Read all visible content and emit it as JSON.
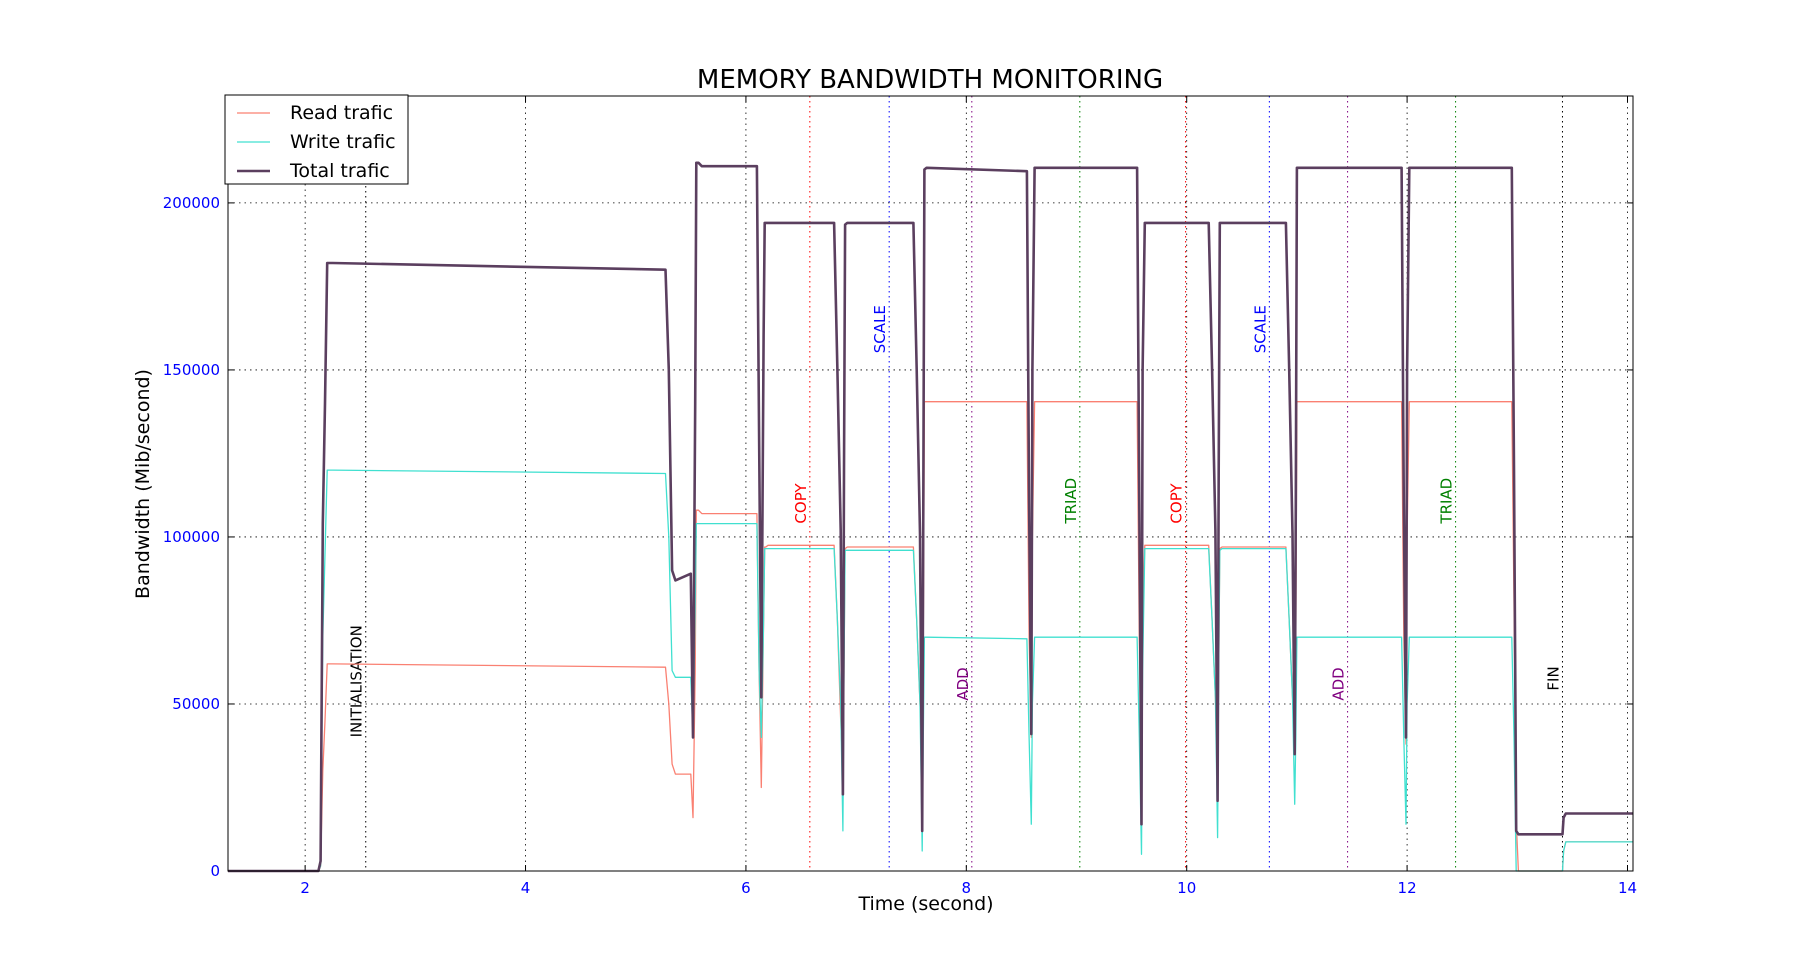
{
  "chart_data": {
    "type": "line",
    "title": "MEMORY BANDWIDTH MONITORING",
    "xlabel": "Time (second)",
    "ylabel": "Bandwidth (Mib/second)",
    "xlim": [
      1.3,
      14.05
    ],
    "ylim": [
      0,
      232000
    ],
    "xticks": [
      2,
      4,
      6,
      8,
      10,
      12,
      14
    ],
    "yticks": [
      0,
      50000,
      100000,
      150000,
      200000
    ],
    "grid": true,
    "legend_position": "top-left",
    "tick_label_color": "#0000ff",
    "series": [
      {
        "name": "Read trafic",
        "color": "#fa8072",
        "width": 1.3,
        "x": [
          1.3,
          2.1,
          2.12,
          2.14,
          2.16,
          2.18,
          2.2,
          2.25,
          5.27,
          5.3,
          5.33,
          5.36,
          5.5,
          5.52,
          5.54,
          5.55,
          5.57,
          5.6,
          6.1,
          6.12,
          6.14,
          6.16,
          6.17,
          6.18,
          6.2,
          6.8,
          6.83,
          6.86,
          6.88,
          6.89,
          6.9,
          6.92,
          7.52,
          7.55,
          7.58,
          7.6,
          7.61,
          7.62,
          7.64,
          8.55,
          8.57,
          8.59,
          8.6,
          8.62,
          9.55,
          9.57,
          9.59,
          9.6,
          9.62,
          10.2,
          10.23,
          10.26,
          10.28,
          10.29,
          10.3,
          10.32,
          10.9,
          10.93,
          10.96,
          10.98,
          10.99,
          11.0,
          11.02,
          11.95,
          11.97,
          11.99,
          12.0,
          12.02,
          12.95,
          12.97,
          12.99,
          13.01,
          13.4,
          13.41,
          13.42,
          13.44,
          14.05
        ],
        "y": [
          0,
          0,
          0,
          1500,
          30000,
          45000,
          62000,
          62000,
          61000,
          50000,
          32000,
          29000,
          29000,
          16000,
          60000,
          108000,
          108000,
          107000,
          107000,
          60000,
          25000,
          75000,
          97000,
          97000,
          97500,
          97500,
          75000,
          45000,
          30000,
          60000,
          96500,
          97000,
          97000,
          75000,
          50000,
          38000,
          70000,
          140500,
          140500,
          140500,
          70000,
          40000,
          100000,
          140500,
          140500,
          70000,
          20000,
          75000,
          97500,
          97500,
          75000,
          52000,
          30000,
          60000,
          96500,
          97000,
          97000,
          75000,
          52000,
          38000,
          70000,
          140500,
          140500,
          140500,
          70000,
          38000,
          100000,
          140500,
          140500,
          80000,
          15000,
          0,
          0,
          0,
          6000,
          8700,
          8700
        ]
      },
      {
        "name": "Write trafic",
        "color": "#40e0d0",
        "width": 1.3,
        "x": [
          1.3,
          2.1,
          2.12,
          2.14,
          2.16,
          2.18,
          2.2,
          2.25,
          5.27,
          5.3,
          5.33,
          5.36,
          5.5,
          5.52,
          5.54,
          5.55,
          5.57,
          5.6,
          6.1,
          6.12,
          6.14,
          6.16,
          6.17,
          6.18,
          6.2,
          6.8,
          6.83,
          6.86,
          6.88,
          6.89,
          6.9,
          6.92,
          7.52,
          7.55,
          7.58,
          7.6,
          7.61,
          7.62,
          7.64,
          8.55,
          8.57,
          8.59,
          8.6,
          8.62,
          9.55,
          9.57,
          9.59,
          9.6,
          9.62,
          10.2,
          10.23,
          10.26,
          10.28,
          10.29,
          10.3,
          10.32,
          10.9,
          10.93,
          10.96,
          10.98,
          10.99,
          11.0,
          11.02,
          11.95,
          11.97,
          11.99,
          12.0,
          12.02,
          12.95,
          12.97,
          12.99,
          13.01,
          13.4,
          13.41,
          13.42,
          13.44,
          14.05
        ],
        "y": [
          0,
          0,
          0,
          1500,
          70000,
          95000,
          120000,
          120000,
          119000,
          100000,
          60000,
          58000,
          58000,
          40000,
          80000,
          104000,
          104000,
          104000,
          104000,
          60000,
          40000,
          75000,
          96500,
          96500,
          96500,
          96500,
          75000,
          50000,
          12000,
          60000,
          96000,
          96000,
          96000,
          75000,
          50000,
          6000,
          40000,
          70000,
          70000,
          69500,
          40000,
          14000,
          50000,
          70000,
          70000,
          40000,
          5000,
          60000,
          96500,
          96500,
          75000,
          52000,
          10000,
          60000,
          96000,
          96500,
          96500,
          75000,
          52000,
          20000,
          40000,
          70000,
          70000,
          70000,
          40000,
          14000,
          50000,
          70000,
          70000,
          40000,
          0,
          0,
          0,
          0,
          6000,
          8700,
          8700
        ]
      },
      {
        "name": "Total trafic",
        "color": "#5b3f5f",
        "width": 2.6,
        "x": [
          1.3,
          2.1,
          2.12,
          2.14,
          2.16,
          2.18,
          2.2,
          2.25,
          5.27,
          5.3,
          5.33,
          5.36,
          5.5,
          5.52,
          5.54,
          5.55,
          5.57,
          5.6,
          6.1,
          6.12,
          6.14,
          6.16,
          6.17,
          6.18,
          6.2,
          6.8,
          6.83,
          6.86,
          6.88,
          6.89,
          6.9,
          6.92,
          7.52,
          7.55,
          7.58,
          7.6,
          7.61,
          7.62,
          7.64,
          8.55,
          8.57,
          8.59,
          8.6,
          8.62,
          9.55,
          9.57,
          9.59,
          9.6,
          9.62,
          10.2,
          10.23,
          10.26,
          10.28,
          10.29,
          10.3,
          10.32,
          10.9,
          10.93,
          10.96,
          10.98,
          10.99,
          11.0,
          11.02,
          11.95,
          11.97,
          11.99,
          12.0,
          12.02,
          12.95,
          12.97,
          12.99,
          13.01,
          13.4,
          13.41,
          13.42,
          13.44,
          14.05
        ],
        "y": [
          0,
          0,
          0,
          3000,
          104000,
          140000,
          182000,
          182000,
          180000,
          150000,
          90000,
          87000,
          89000,
          40000,
          140000,
          212000,
          212000,
          211000,
          211000,
          130000,
          52000,
          160000,
          194000,
          194000,
          194000,
          194000,
          150000,
          102000,
          23000,
          120000,
          193500,
          194000,
          194000,
          150000,
          101000,
          12000,
          110000,
          210000,
          210500,
          209500,
          110000,
          41000,
          150000,
          210500,
          210500,
          110000,
          14000,
          150000,
          194000,
          194000,
          150000,
          102000,
          21000,
          120000,
          194000,
          194000,
          194000,
          150000,
          101000,
          35000,
          110000,
          210500,
          210500,
          210500,
          110000,
          40000,
          150000,
          210500,
          210500,
          120000,
          12000,
          11000,
          11000,
          11000,
          16000,
          17200,
          17200
        ]
      }
    ],
    "markers": [
      {
        "x": 2.55,
        "label": "INITIALISATION",
        "color": "#000000",
        "label_y": 40000
      },
      {
        "x": 6.58,
        "label": "COPY",
        "color": "#ff0000",
        "label_y": 104000
      },
      {
        "x": 7.3,
        "label": "SCALE",
        "color": "#0000ff",
        "label_y": 155000
      },
      {
        "x": 8.05,
        "label": "ADD",
        "color": "#800080",
        "label_y": 51000
      },
      {
        "x": 9.03,
        "label": "TRIAD",
        "color": "#008000",
        "label_y": 104000
      },
      {
        "x": 9.99,
        "label": "COPY",
        "color": "#ff0000",
        "label_y": 104000
      },
      {
        "x": 10.75,
        "label": "SCALE",
        "color": "#0000ff",
        "label_y": 155000
      },
      {
        "x": 11.46,
        "label": "ADD",
        "color": "#800080",
        "label_y": 51000
      },
      {
        "x": 12.44,
        "label": "TRIAD",
        "color": "#008000",
        "label_y": 104000
      },
      {
        "x": 13.41,
        "label": "FIN",
        "color": "#000000",
        "label_y": 54000
      }
    ]
  }
}
